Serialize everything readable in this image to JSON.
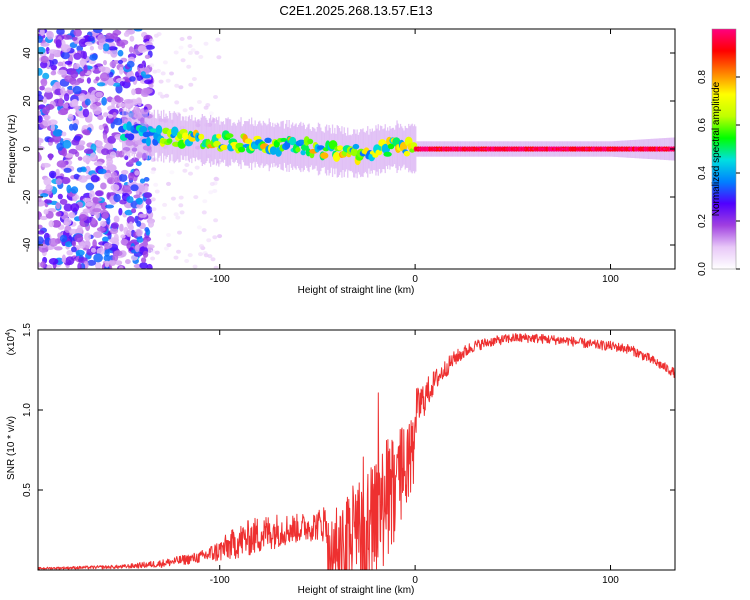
{
  "title": "C2E1.2025.268.13.57.E13",
  "chart_data": [
    {
      "type": "heatmap",
      "name": "spectrogram",
      "xlabel": "Height of straight line (km)",
      "ylabel": "Frequency (Hz)",
      "xlim": [
        -193,
        133
      ],
      "ylim": [
        -50,
        50
      ],
      "xticks": [
        -100,
        0,
        100
      ],
      "yticks": [
        -40,
        -20,
        0,
        20,
        40
      ],
      "colorbar": {
        "label": "Normalized spectral amplitude",
        "range": [
          0.0,
          1.0
        ],
        "ticks": [
          "0.0",
          "0.2",
          "0.4",
          "0.6",
          "0.8"
        ],
        "colors": [
          "#ffffff",
          "#e8c8f8",
          "#a040e0",
          "#5000ff",
          "#0080ff",
          "#00e0e0",
          "#00ff00",
          "#c0ff00",
          "#ffff00",
          "#ff8000",
          "#ff0000",
          "#ff0080"
        ]
      },
      "features": [
        {
          "region": "noise",
          "x_range": [
            -193,
            -135
          ],
          "freq_range": [
            -50,
            50
          ],
          "amplitude": [
            0.1,
            0.4
          ]
        },
        {
          "region": "scattered echoes",
          "x_range": [
            -135,
            -100
          ],
          "freq_range": [
            -50,
            50
          ],
          "amplitude": [
            0.02,
            0.1
          ]
        },
        {
          "region": "signal band",
          "x_range": [
            -150,
            133
          ],
          "center_freq": [
            [
              -150,
              7
            ],
            [
              -100,
              3
            ],
            [
              -60,
              1
            ],
            [
              -30,
              -2
            ],
            [
              -10,
              1
            ],
            [
              0,
              0
            ],
            [
              133,
              0
            ]
          ],
          "amplitude": [
            0.4,
            1.0
          ]
        }
      ]
    },
    {
      "type": "line",
      "name": "snr",
      "color": "#ee3030",
      "xlabel": "Height of straight line (km)",
      "ylabel": "SNR (10 * v/v)",
      "y_scale_label": "(x10",
      "y_scale_exponent": "4",
      "xlim": [
        -193,
        133
      ],
      "ylim": [
        0.0,
        1.5
      ],
      "xticks": [
        -100,
        0,
        100
      ],
      "yticks": [
        "0.5",
        "1.0",
        "1.5"
      ],
      "envelope": {
        "x": [
          -193,
          -150,
          -130,
          -110,
          -100,
          -90,
          -80,
          -70,
          -60,
          -50,
          -40,
          -35,
          -30,
          -25,
          -20,
          -15,
          -10,
          -5,
          0,
          10,
          20,
          30,
          40,
          50,
          60,
          70,
          80,
          90,
          100,
          110,
          120,
          133
        ],
        "y": [
          0.01,
          0.02,
          0.04,
          0.08,
          0.12,
          0.18,
          0.22,
          0.25,
          0.26,
          0.28,
          0.32,
          0.45,
          0.62,
          0.72,
          0.8,
          0.85,
          0.88,
          0.9,
          0.98,
          1.18,
          1.32,
          1.4,
          1.43,
          1.45,
          1.45,
          1.44,
          1.43,
          1.41,
          1.4,
          1.38,
          1.32,
          1.23
        ]
      },
      "spread": {
        "x": [
          -193,
          -150,
          -130,
          -110,
          -100,
          -90,
          -80,
          -70,
          -60,
          -50,
          -40,
          -35,
          -30,
          -25,
          -20,
          -15,
          -10,
          -5,
          0,
          10,
          20,
          30,
          40,
          60,
          80,
          100,
          120,
          133
        ],
        "y": [
          0.01,
          0.02,
          0.04,
          0.06,
          0.12,
          0.18,
          0.2,
          0.18,
          0.15,
          0.16,
          0.28,
          0.42,
          0.55,
          0.6,
          0.6,
          0.5,
          0.45,
          0.35,
          0.25,
          0.12,
          0.08,
          0.06,
          0.05,
          0.05,
          0.05,
          0.05,
          0.05,
          0.05
        ]
      }
    }
  ]
}
